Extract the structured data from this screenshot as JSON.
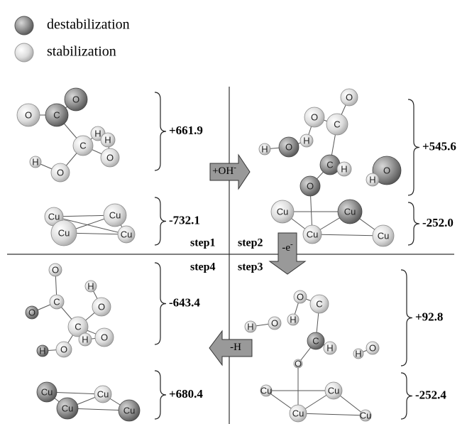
{
  "legend": [
    "destabilization",
    "stabilization"
  ],
  "panels": [
    {
      "step": "step1",
      "adsorbate": {
        "atoms": [
          "O",
          "C",
          "O",
          "C",
          "H",
          "H",
          "O",
          "H",
          "O"
        ],
        "energy": "+661.9"
      },
      "surface": {
        "atoms": [
          "Cu",
          "Cu",
          "Cu",
          "Cu"
        ],
        "energy": "-732.1"
      }
    },
    {
      "step": "step2",
      "adsorbate": {
        "atoms": [
          "O",
          "O",
          "C",
          "H",
          "H",
          "O",
          "C",
          "H",
          "O",
          "O",
          "H"
        ],
        "energy": "+545.6"
      },
      "surface": {
        "atoms": [
          "Cu",
          "Cu",
          "Cu",
          "Cu"
        ],
        "energy": "-252.0"
      }
    },
    {
      "step": "step3",
      "adsorbate": {
        "atoms": [
          "O",
          "C",
          "H",
          "H",
          "O",
          "C",
          "H",
          "O",
          "H",
          "O"
        ],
        "energy": "+92.8"
      },
      "surface": {
        "atoms": [
          "Cu",
          "Cu",
          "Cu",
          "Cu"
        ],
        "energy": "-252.4"
      }
    },
    {
      "step": "step4",
      "adsorbate": {
        "atoms": [
          "O",
          "H",
          "O",
          "C",
          "O",
          "C",
          "H",
          "O",
          "O",
          "H"
        ],
        "energy": "-643.4"
      },
      "surface": {
        "atoms": [
          "Cu",
          "Cu",
          "Cu",
          "Cu"
        ],
        "energy": "+680.4"
      }
    }
  ],
  "arrows": [
    {
      "text": "+OH",
      "superscript": "-"
    },
    {
      "text": "-e",
      "superscript": "-"
    },
    {
      "text": "-H"
    }
  ]
}
